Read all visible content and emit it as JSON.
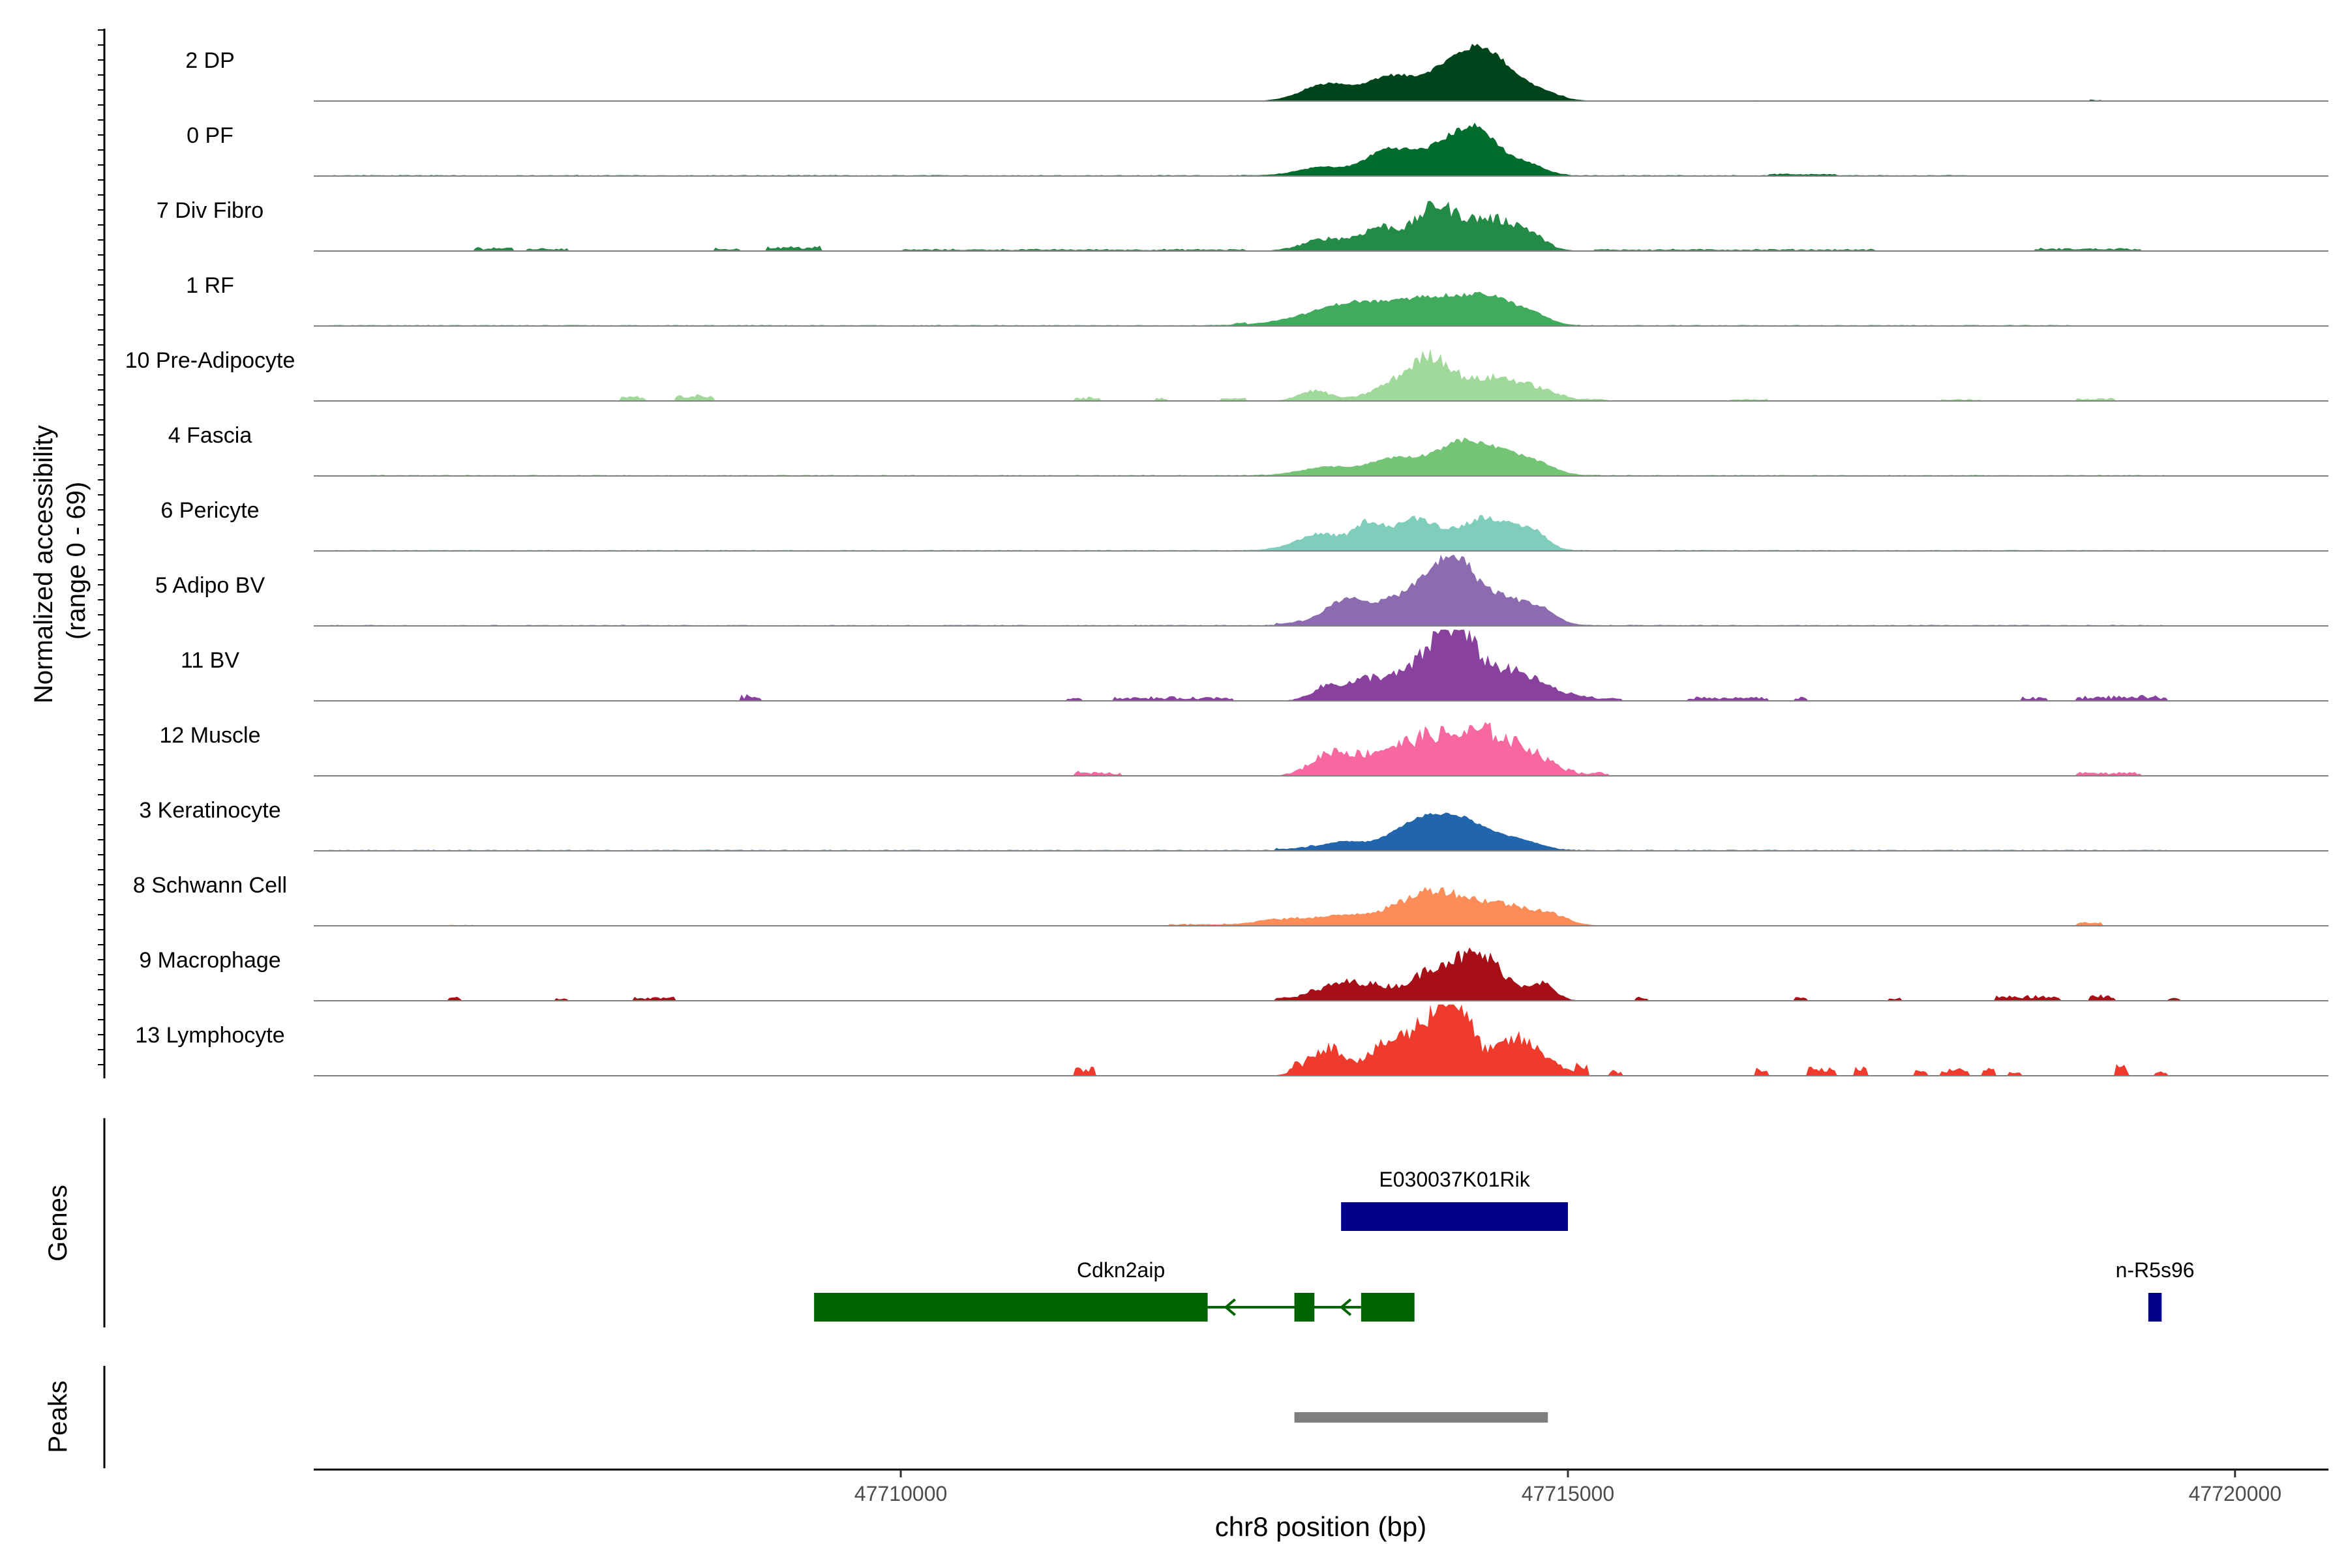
{
  "chart_data": {
    "type": "area",
    "title": "",
    "xlabel": "chr8 position (bp)",
    "ylabel": "Normalized accessibility\n(range 0 - 69)",
    "ylabel_lines": [
      "Normalized accessibility",
      "(range 0 - 69)"
    ],
    "xlim": [
      47705600,
      47720700
    ],
    "ylim": [
      0,
      69
    ],
    "x_ticks": [
      47710000,
      47715000,
      47720000
    ],
    "x_tick_labels": [
      "47710000",
      "47715000",
      "47720000"
    ],
    "grid": false,
    "series": [
      {
        "name": "2 DP",
        "color": "#00441b",
        "background": [
          [
            47713000,
            47715000,
            1
          ],
          [
            47716200,
            47716600,
            0.7
          ],
          [
            47718900,
            47719000,
            1.5
          ]
        ],
        "peaks": [
          [
            47713200,
            190,
            16
          ],
          [
            47713650,
            160,
            20
          ],
          [
            47714150,
            230,
            35
          ],
          [
            47714400,
            160,
            28
          ],
          [
            47714700,
            180,
            12
          ]
        ],
        "jagged": 0.12
      },
      {
        "name": "0 PF",
        "color": "#006d2c",
        "background": [
          [
            47705700,
            47718000,
            1
          ],
          [
            47716500,
            47717000,
            1.5
          ]
        ],
        "peaks": [
          [
            47713150,
            170,
            8
          ],
          [
            47713650,
            170,
            24
          ],
          [
            47714100,
            200,
            28
          ],
          [
            47714350,
            160,
            32
          ],
          [
            47714700,
            130,
            10
          ]
        ],
        "jagged": 0.15
      },
      {
        "name": "7 Div Fibro",
        "color": "#238b45",
        "background": [
          [
            47706800,
            47707100,
            4
          ],
          [
            47707200,
            47707500,
            3
          ],
          [
            47708600,
            47708800,
            3
          ],
          [
            47709000,
            47709400,
            5
          ],
          [
            47710000,
            47712600,
            2
          ],
          [
            47715200,
            47717300,
            2
          ],
          [
            47718500,
            47719300,
            3
          ]
        ],
        "peaks": [
          [
            47713200,
            180,
            12
          ],
          [
            47713600,
            140,
            22
          ],
          [
            47714000,
            150,
            40
          ],
          [
            47714400,
            200,
            30
          ],
          [
            47714700,
            130,
            12
          ]
        ],
        "jagged": 0.35
      },
      {
        "name": "1 RF",
        "color": "#41ab5d",
        "background": [
          [
            47705700,
            47718800,
            1
          ],
          [
            47712500,
            47712600,
            2
          ]
        ],
        "peaks": [
          [
            47713100,
            260,
            8
          ],
          [
            47713400,
            220,
            14
          ],
          [
            47714000,
            320,
            28
          ],
          [
            47714450,
            170,
            18
          ],
          [
            47714750,
            120,
            8
          ]
        ],
        "jagged": 0.15
      },
      {
        "name": "10 Pre-Adipocyte",
        "color": "#a1d99b",
        "background": [
          [
            47707900,
            47708100,
            5
          ],
          [
            47708300,
            47708600,
            6
          ],
          [
            47711300,
            47711500,
            4
          ],
          [
            47711900,
            47712000,
            3
          ],
          [
            47712400,
            47712600,
            3
          ],
          [
            47715100,
            47715300,
            2
          ],
          [
            47716200,
            47716500,
            2
          ],
          [
            47717800,
            47718100,
            2
          ],
          [
            47718800,
            47719100,
            3
          ]
        ],
        "peaks": [
          [
            47713100,
            120,
            10
          ],
          [
            47713750,
            200,
            18
          ],
          [
            47714000,
            150,
            34
          ],
          [
            47714450,
            200,
            22
          ],
          [
            47714800,
            160,
            8
          ]
        ],
        "jagged": 0.35
      },
      {
        "name": "4 Fascia",
        "color": "#74c476",
        "background": [
          [
            47705700,
            47719500,
            1
          ]
        ],
        "peaks": [
          [
            47713200,
            200,
            8
          ],
          [
            47713700,
            180,
            16
          ],
          [
            47714200,
            200,
            32
          ],
          [
            47714550,
            160,
            16
          ],
          [
            47714800,
            130,
            8
          ]
        ],
        "jagged": 0.15
      },
      {
        "name": "6 Pericyte",
        "color": "#7fcdbb",
        "background": [
          [
            47705700,
            47719500,
            1
          ]
        ],
        "peaks": [
          [
            47713150,
            180,
            16
          ],
          [
            47713500,
            100,
            22
          ],
          [
            47713850,
            180,
            30
          ],
          [
            47714400,
            200,
            32
          ],
          [
            47714750,
            100,
            14
          ]
        ],
        "jagged": 0.2
      },
      {
        "name": "5 Adipo BV",
        "color": "#8c6bb1",
        "background": [
          [
            47705700,
            47719500,
            1
          ],
          [
            47712800,
            47713000,
            2
          ]
        ],
        "peaks": [
          [
            47713350,
            180,
            24
          ],
          [
            47713850,
            200,
            32
          ],
          [
            47714150,
            150,
            55
          ],
          [
            47714500,
            180,
            26
          ],
          [
            47714800,
            120,
            12
          ]
        ],
        "jagged": 0.2
      },
      {
        "name": "11 BV",
        "color": "#88419d",
        "background": [
          [
            47708800,
            47708950,
            6
          ],
          [
            47711250,
            47711350,
            4
          ],
          [
            47711600,
            47712500,
            4
          ],
          [
            47715000,
            47715400,
            3
          ],
          [
            47715900,
            47716500,
            4
          ],
          [
            47716700,
            47716800,
            4
          ],
          [
            47718800,
            47719500,
            5
          ],
          [
            47718400,
            47718600,
            4
          ]
        ],
        "peaks": [
          [
            47713200,
            120,
            14
          ],
          [
            47713500,
            140,
            18
          ],
          [
            47713900,
            200,
            30
          ],
          [
            47714150,
            150,
            55
          ],
          [
            47714500,
            200,
            26
          ],
          [
            47714800,
            180,
            10
          ]
        ],
        "jagged": 0.4
      },
      {
        "name": "12 Muscle",
        "color": "#f768a1",
        "background": [
          [
            47711300,
            47711650,
            4
          ],
          [
            47714850,
            47715300,
            4
          ],
          [
            47718800,
            47719300,
            4
          ]
        ],
        "peaks": [
          [
            47713250,
            160,
            24
          ],
          [
            47713600,
            140,
            16
          ],
          [
            47713950,
            200,
            36
          ],
          [
            47714400,
            200,
            40
          ],
          [
            47714750,
            130,
            16
          ]
        ],
        "jagged": 0.45
      },
      {
        "name": "3 Keratinocyte",
        "color": "#2166ac",
        "background": [
          [
            47705700,
            47719500,
            1
          ],
          [
            47712800,
            47713100,
            2
          ]
        ],
        "peaks": [
          [
            47713300,
            160,
            8
          ],
          [
            47713850,
            200,
            22
          ],
          [
            47714200,
            220,
            28
          ],
          [
            47714650,
            150,
            8
          ]
        ],
        "jagged": 0.1
      },
      {
        "name": "8 Schwann Cell",
        "color": "#fc8d59",
        "background": [
          [
            47706600,
            47706800,
            1
          ],
          [
            47712000,
            47712800,
            2
          ],
          [
            47718800,
            47719000,
            4
          ]
        ],
        "peaks": [
          [
            47712900,
            200,
            6
          ],
          [
            47713400,
            240,
            10
          ],
          [
            47714000,
            240,
            34
          ],
          [
            47714500,
            200,
            18
          ],
          [
            47714850,
            150,
            10
          ]
        ],
        "jagged": 0.3
      },
      {
        "name": "9 Macrophage",
        "color": "#a50f15",
        "background": [
          [
            47706600,
            47706700,
            4
          ],
          [
            47707400,
            47707500,
            3
          ],
          [
            47708000,
            47708300,
            4
          ],
          [
            47715500,
            47715600,
            4
          ],
          [
            47716700,
            47716800,
            4
          ],
          [
            47717400,
            47717500,
            3
          ],
          [
            47718200,
            47718700,
            5
          ],
          [
            47718900,
            47719100,
            6
          ],
          [
            47719500,
            47719600,
            3
          ],
          [
            47712800,
            47713100,
            3
          ]
        ],
        "peaks": [
          [
            47713300,
            180,
            16
          ],
          [
            47713600,
            160,
            10
          ],
          [
            47714000,
            160,
            28
          ],
          [
            47714350,
            180,
            42
          ],
          [
            47714800,
            100,
            16
          ]
        ],
        "jagged": 0.4
      },
      {
        "name": "13 Lymphocyte",
        "color": "#ef3b2c",
        "background": [
          [
            47711300,
            47711450,
            8
          ],
          [
            47712900,
            47713000,
            6
          ],
          [
            47715050,
            47715150,
            12
          ],
          [
            47715300,
            47715400,
            6
          ],
          [
            47716400,
            47716500,
            8
          ],
          [
            47716800,
            47717000,
            8
          ],
          [
            47717150,
            47717250,
            8
          ],
          [
            47717600,
            47717700,
            6
          ],
          [
            47717800,
            47718000,
            8
          ],
          [
            47718100,
            47718200,
            8
          ],
          [
            47718300,
            47718400,
            6
          ],
          [
            47719100,
            47719200,
            12
          ],
          [
            47719400,
            47719500,
            6
          ]
        ],
        "peaks": [
          [
            47713200,
            140,
            28
          ],
          [
            47713600,
            120,
            16
          ],
          [
            47713900,
            200,
            40
          ],
          [
            47714150,
            140,
            58
          ],
          [
            47714600,
            140,
            34
          ],
          [
            47714850,
            120,
            12
          ]
        ],
        "jagged": 0.45
      }
    ],
    "genes": [
      {
        "name": "E030037K01Rik",
        "color": "#00008b",
        "row": 1,
        "strand": "+",
        "exons": [
          [
            47713300,
            47715000
          ]
        ],
        "intron": null,
        "label_x": 47714150
      },
      {
        "name": "Cdkn2aip",
        "color": "#006400",
        "row": 2,
        "strand": "-",
        "exons": [
          [
            47709350,
            47712300
          ],
          [
            47712950,
            47713100
          ],
          [
            47713450,
            47713850
          ]
        ],
        "intron": [
          47712300,
          47713450
        ],
        "label_x": 47711650
      },
      {
        "name": "n-R5s96",
        "color": "#00008b",
        "row": 2,
        "strand": "+",
        "exons": [
          [
            47719350,
            47719450
          ]
        ],
        "intron": null,
        "label_x": 47719400
      }
    ],
    "peaks_track": [
      {
        "start": 47712950,
        "end": 47714850,
        "color": "#7f7f7f"
      }
    ],
    "genes_label": "Genes",
    "peaks_label": "Peaks"
  }
}
